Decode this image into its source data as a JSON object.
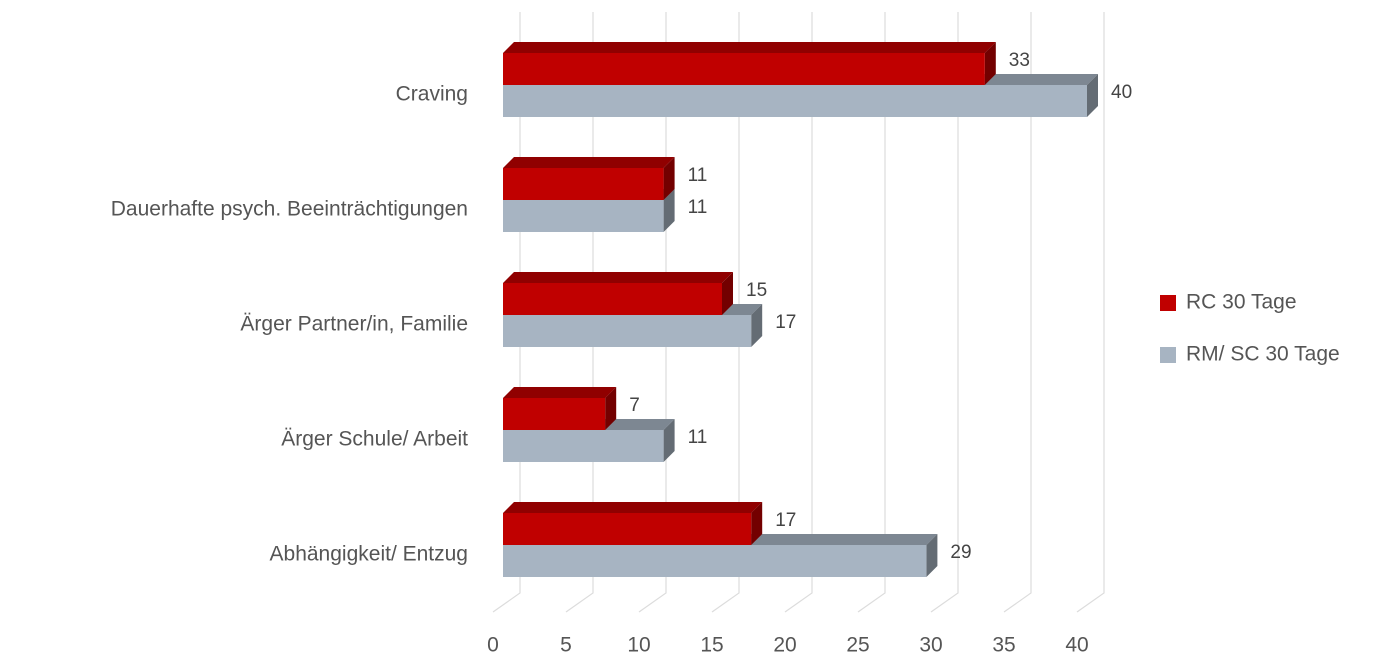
{
  "chart_data": {
    "type": "bar3d_horizontal",
    "categories": [
      "Craving",
      "Dauerhafte psych. Beeinträchtigungen",
      "Ärger Partner/in, Familie",
      "Ärger Schule/ Arbeit",
      "Abhängigkeit/ Entzug"
    ],
    "series": [
      {
        "name": "RC 30 Tage",
        "color": "#c00000",
        "values": [
          33,
          11,
          15,
          7,
          17
        ]
      },
      {
        "name": "RM/ SC 30 Tage",
        "color": "#a7b4c2",
        "values": [
          40,
          11,
          17,
          11,
          29
        ]
      }
    ],
    "xlim": [
      0,
      40
    ],
    "xticks": [
      0,
      5,
      10,
      15,
      20,
      25,
      30,
      35,
      40
    ],
    "grid": true,
    "legend": "right"
  }
}
